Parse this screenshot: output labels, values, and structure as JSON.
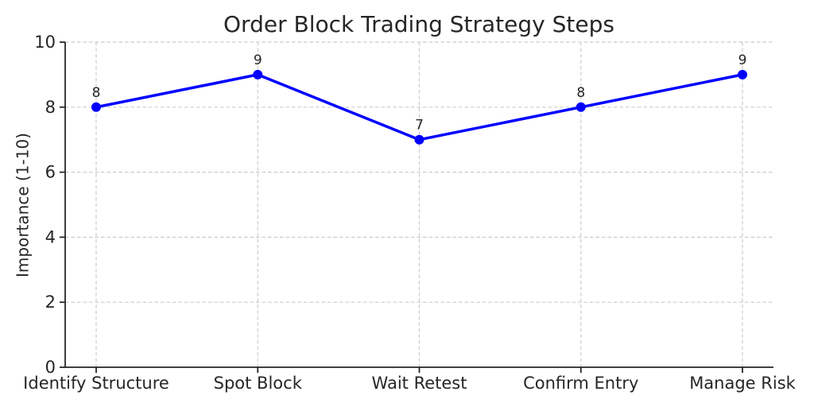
{
  "chart_data": {
    "type": "line",
    "title": "Order Block Trading Strategy Steps",
    "xlabel": "",
    "ylabel": "Importance (1-10)",
    "categories": [
      "Identify Structure",
      "Spot Block",
      "Wait Retest",
      "Confirm Entry",
      "Manage Risk"
    ],
    "series": [
      {
        "name": "Importance",
        "values": [
          8,
          9,
          7,
          8,
          9
        ]
      }
    ],
    "point_labels": [
      "8",
      "9",
      "7",
      "8",
      "9"
    ],
    "ylim": [
      0,
      10
    ],
    "yticks": [
      0,
      2,
      4,
      6,
      8,
      10
    ],
    "grid": "dashed-both-axes",
    "legend_position": "none",
    "colors": {
      "line": "#0000ff",
      "marker": "#0000ff",
      "grid": "#cccccc",
      "spine": "#262626",
      "text": "#262626",
      "background": "#ffffff"
    },
    "marker_shape": "circle"
  }
}
